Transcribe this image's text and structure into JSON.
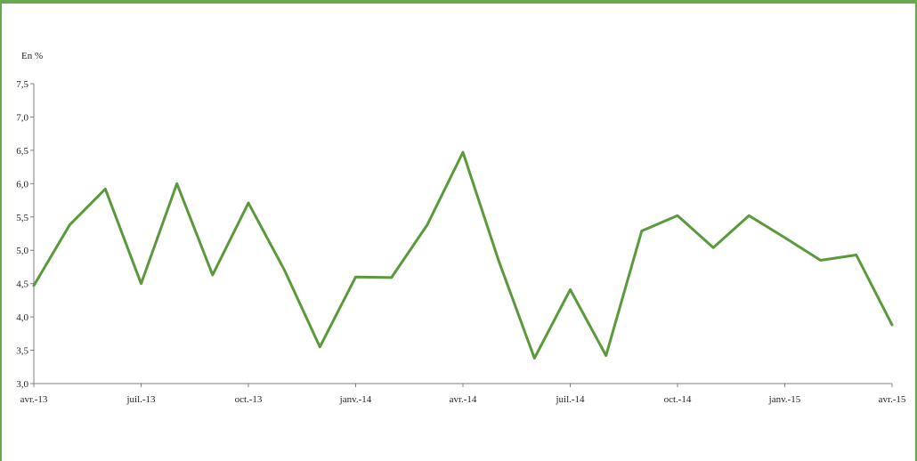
{
  "chart_data": {
    "type": "line",
    "ylabel": "En %",
    "ylim": [
      3.0,
      7.5
    ],
    "yticks": [
      "3,0",
      "3,5",
      "4,0",
      "4,5",
      "5,0",
      "5,5",
      "6,0",
      "6,5",
      "7,0",
      "7,5"
    ],
    "xtick_labels": [
      "avr.-13",
      "juil.-13",
      "oct.-13",
      "janv.-14",
      "avr.-14",
      "juil.-14",
      "oct.-14",
      "janv.-15",
      "avr.-15"
    ],
    "x": [
      "avr.-13",
      "mai-13",
      "juin-13",
      "juil.-13",
      "août-13",
      "sept.-13",
      "oct.-13",
      "nov.-13",
      "déc.-13",
      "janv.-14",
      "févr.-14",
      "mars-14",
      "avr.-14",
      "mai-14",
      "juin-14",
      "juil.-14",
      "août-14",
      "sept.-14",
      "oct.-14",
      "nov.-14",
      "déc.-14",
      "janv.-15",
      "févr.-15",
      "mars-15",
      "avr.-15"
    ],
    "series": [
      {
        "color": "#5b9a3c",
        "values": [
          4.47,
          5.38,
          5.92,
          4.5,
          6.0,
          4.63,
          5.71,
          4.71,
          3.55,
          4.6,
          4.59,
          5.38,
          6.47,
          4.84,
          3.38,
          4.41,
          3.42,
          5.29,
          5.52,
          5.04,
          5.52,
          5.19,
          4.85,
          4.93,
          3.88
        ]
      }
    ],
    "grid": false,
    "legend": "none"
  }
}
